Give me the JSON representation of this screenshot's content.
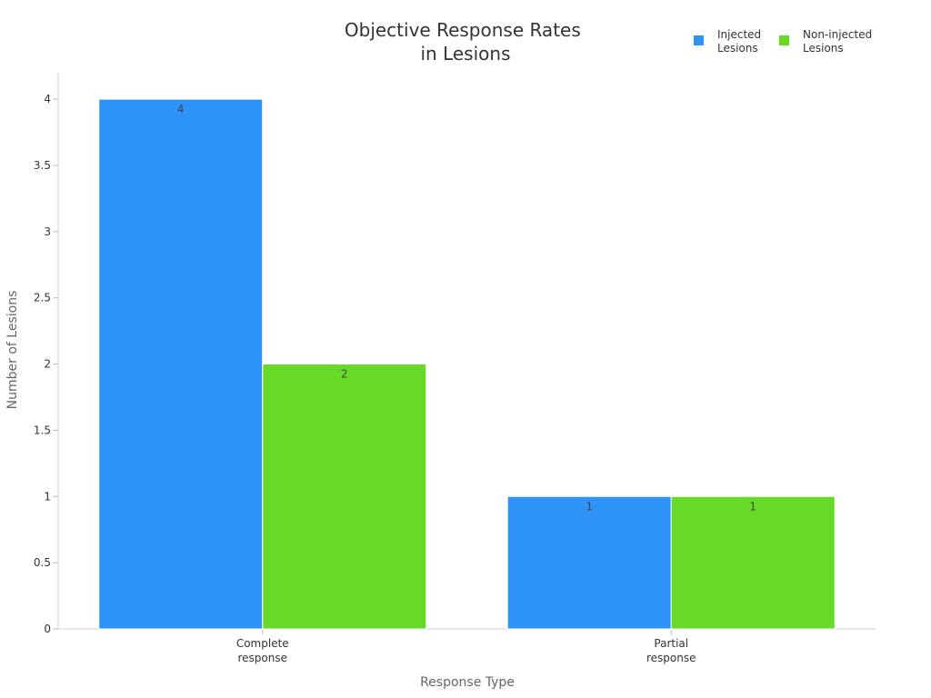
{
  "chart_data": {
    "type": "bar",
    "title": [
      "Objective Response Rates",
      "in Lesions"
    ],
    "xlabel": "Response Type",
    "ylabel": "Number of Lesions",
    "categories": [
      [
        "Complete",
        "response"
      ],
      [
        "Partial",
        "response"
      ]
    ],
    "series": [
      {
        "name": [
          "Injected",
          "Lesions"
        ],
        "values": [
          4,
          1
        ],
        "color": "#2e93f9"
      },
      {
        "name": [
          "Non-injected",
          "Lesions"
        ],
        "values": [
          2,
          1
        ],
        "color": "#66da26"
      }
    ],
    "ylim": [
      0,
      4.2
    ],
    "yticks": [
      "0",
      "0.5",
      "1",
      "1.5",
      "2",
      "2.5",
      "3",
      "3.5",
      "4"
    ],
    "grid": false,
    "legend": "top-right",
    "data_labels": true
  }
}
